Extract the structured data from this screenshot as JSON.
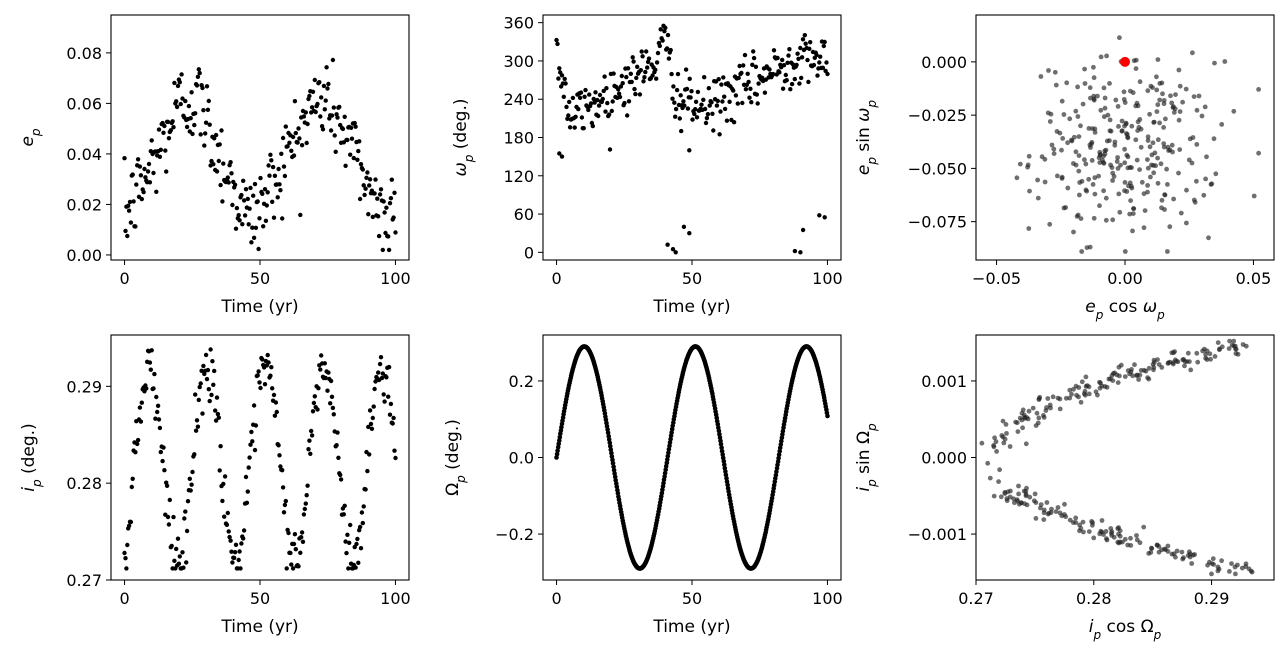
{
  "chart_data": [
    {
      "id": "p1",
      "type": "scatter",
      "xlabel": "Time (yr)",
      "ylabel": "e_p",
      "xlim": [
        -5,
        105
      ],
      "ylim": [
        -0.002,
        0.095
      ],
      "xticks": [
        0,
        50,
        100
      ],
      "yticks": [
        0.0,
        0.02,
        0.04,
        0.06,
        0.08
      ],
      "ytick_labels": [
        "0.00",
        "0.02",
        "0.04",
        "0.06",
        "0.08"
      ],
      "marker_color": "#000000",
      "series": [
        {
          "kind": "sampled-curve",
          "description_of_shape": "two-hump modulation with noise",
          "x_range": [
            0,
            100
          ],
          "n_points": 300,
          "anchor_x": [
            0,
            10,
            20,
            27,
            35,
            45,
            50,
            60,
            70,
            75,
            85,
            95,
            100
          ],
          "anchor_y": [
            0.015,
            0.035,
            0.06,
            0.062,
            0.04,
            0.015,
            0.018,
            0.04,
            0.06,
            0.062,
            0.04,
            0.015,
            0.02
          ],
          "scatter_amplitude": 0.012
        }
      ]
    },
    {
      "id": "p2",
      "type": "scatter",
      "xlabel": "Time (yr)",
      "ylabel": "ω_p (deg.)",
      "xlim": [
        -5,
        105
      ],
      "ylim": [
        -12,
        372
      ],
      "xticks": [
        0,
        50,
        100
      ],
      "yticks": [
        0,
        60,
        120,
        180,
        240,
        300,
        360
      ],
      "ytick_labels": [
        "0",
        "60",
        "120",
        "180",
        "240",
        "300",
        "360"
      ],
      "marker_color": "#000000",
      "series": [
        {
          "kind": "sampled-curve",
          "x_range": [
            0,
            100
          ],
          "n_points": 300,
          "anchor_x": [
            0,
            5,
            20,
            35,
            40,
            45,
            55,
            70,
            85,
            93,
            100
          ],
          "anchor_y": [
            320,
            210,
            250,
            290,
            330,
            240,
            225,
            260,
            295,
            320,
            280
          ],
          "scatter_amplitude": 30,
          "outliers": [
            [
              41,
              12
            ],
            [
              43,
              5
            ],
            [
              44,
              0
            ],
            [
              47,
              40
            ],
            [
              49,
              30
            ],
            [
              88,
              2
            ],
            [
              90,
              0
            ],
            [
              91,
              35
            ],
            [
              97,
              58
            ],
            [
              99,
              55
            ],
            [
              1,
              155
            ],
            [
              2,
              150
            ],
            [
              46,
              190
            ],
            [
              49,
              160
            ]
          ]
        }
      ]
    },
    {
      "id": "p3",
      "type": "scatter",
      "xlabel": "e_p cos ω_p",
      "ylabel": "e_p sin ω_p",
      "xlim": [
        -0.058,
        0.058
      ],
      "ylim": [
        -0.093,
        0.022
      ],
      "xticks": [
        -0.05,
        0.0,
        0.05
      ],
      "xtick_labels": [
        "−0.05",
        "0.00",
        "0.05"
      ],
      "yticks": [
        0.0,
        -0.025,
        -0.05,
        -0.075
      ],
      "ytick_labels": [
        "0.000",
        "−0.025",
        "−0.050",
        "−0.075"
      ],
      "marker_color": "#222222",
      "highlight": {
        "x": 0.0,
        "y": 0.0,
        "color": "#ff0000"
      },
      "series": [
        {
          "kind": "cloud",
          "center": [
            0.0,
            -0.04
          ],
          "spread": [
            0.04,
            0.045
          ],
          "n_points": 300
        }
      ]
    },
    {
      "id": "p4",
      "type": "scatter",
      "xlabel": "Time (yr)",
      "ylabel": "i_p (deg.)",
      "xlim": [
        -5,
        105
      ],
      "ylim": [
        0.27,
        0.2953
      ],
      "xticks": [
        0,
        50,
        100
      ],
      "yticks": [
        0.27,
        0.28,
        0.29
      ],
      "ytick_labels": [
        "0.27",
        "0.28",
        "0.29"
      ],
      "marker_color": "#000000",
      "series": [
        {
          "kind": "sampled-curve",
          "period_yr": 21.5,
          "mean": 0.282,
          "amplitude": 0.01,
          "phase_peak_yr": 9,
          "scatter_amplitude": 0.0025,
          "x_range": [
            0,
            100
          ],
          "n_points": 300
        }
      ]
    },
    {
      "id": "p5",
      "type": "scatter",
      "xlabel": "Time (yr)",
      "ylabel": "Ω_p (deg.)",
      "xlim": [
        -5,
        105
      ],
      "ylim": [
        -0.32,
        0.32
      ],
      "xticks": [
        0,
        50,
        100
      ],
      "yticks": [
        -0.2,
        0.0,
        0.2
      ],
      "ytick_labels": [
        "−0.2",
        "0.0",
        "0.2"
      ],
      "marker_color": "#000000",
      "series": [
        {
          "kind": "sine",
          "amplitude": 0.29,
          "period_yr": 41,
          "phase_start": 0.0,
          "x_range": [
            0,
            100
          ],
          "n_points": 500
        }
      ]
    },
    {
      "id": "p6",
      "type": "scatter",
      "xlabel": "i_p cos Ω_p",
      "ylabel": "i_p sin Ω_p",
      "xlim": [
        0.27,
        0.2953
      ],
      "ylim": [
        -0.0016,
        0.0016
      ],
      "xticks": [
        0.27,
        0.28,
        0.29
      ],
      "xtick_labels": [
        "0.27",
        "0.28",
        "0.29"
      ],
      "yticks": [
        -0.001,
        0.0,
        0.001
      ],
      "ytick_labels": [
        "−0.001",
        "0.000",
        "0.001"
      ],
      "marker_color": "#222222",
      "series": [
        {
          "kind": "parabola-band",
          "apex": [
            0.2715,
            0.0
          ],
          "tip_x": 0.293,
          "half_width_at_tip": 0.00148,
          "n_points": 300
        }
      ]
    }
  ]
}
